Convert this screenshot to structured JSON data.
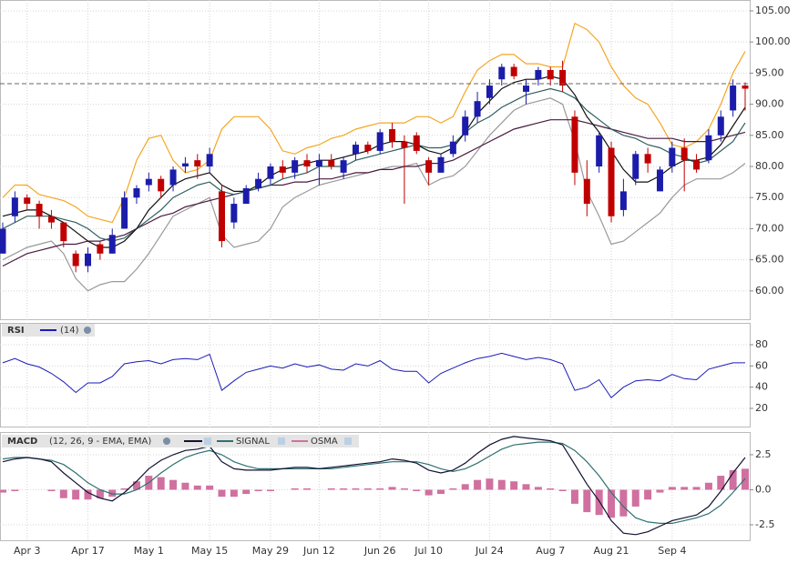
{
  "chart_data": [
    {
      "type": "candlestick",
      "categories": [
        null,
        null,
        "Apr 3",
        null,
        null,
        null,
        null,
        "Apr 17",
        null,
        null,
        null,
        null,
        "May 1",
        null,
        null,
        null,
        null,
        "May 15",
        null,
        null,
        null,
        null,
        "May 29",
        null,
        null,
        null,
        "Jun 12",
        null,
        null,
        null,
        null,
        "Jun 26",
        null,
        null,
        null,
        "Jul 10",
        null,
        null,
        null,
        null,
        "Jul 24",
        null,
        null,
        null,
        null,
        "Aug 7",
        null,
        null,
        null,
        null,
        "Aug 21",
        null,
        null,
        null,
        null,
        "Sep 4",
        null,
        null,
        null,
        null,
        null,
        null
      ],
      "open": [
        66,
        72,
        75,
        74,
        72,
        71,
        66,
        64,
        67.5,
        66,
        70,
        75,
        77,
        78,
        77,
        80,
        81,
        80,
        76,
        71,
        74,
        76.5,
        78,
        80,
        79,
        81,
        80,
        81,
        79,
        82,
        83.5,
        82.5,
        86,
        84,
        85,
        81,
        79,
        82,
        85,
        88,
        91,
        94,
        96,
        92,
        94,
        95.5,
        95.5,
        88,
        78,
        80,
        83,
        73,
        78,
        82,
        76,
        80,
        83,
        81,
        81,
        85,
        89,
        93
      ],
      "high": [
        71,
        76,
        75.5,
        74.5,
        73,
        71,
        66.5,
        67,
        68,
        70,
        76,
        77,
        79,
        78.5,
        80,
        81.5,
        82,
        83,
        77,
        75,
        77,
        79,
        80.5,
        81,
        81.5,
        82,
        82,
        82,
        81.5,
        84,
        84,
        86,
        87,
        85,
        85.5,
        81.5,
        82,
        85,
        89,
        92,
        94,
        96.5,
        96.5,
        94,
        96,
        96,
        97,
        89,
        81,
        85.5,
        84,
        78,
        82.5,
        83,
        80,
        84,
        84.5,
        82,
        86,
        89,
        94,
        93.5
      ],
      "low": [
        66,
        71,
        73,
        70,
        70,
        67,
        63,
        63,
        65,
        66,
        70,
        74,
        76,
        75,
        76,
        79,
        78,
        79,
        67,
        70,
        74,
        76,
        77,
        78,
        78,
        79,
        77,
        79.5,
        78,
        81,
        82,
        82,
        83,
        74,
        82,
        77,
        79,
        81.5,
        84,
        87,
        90,
        93,
        94,
        90,
        93,
        93,
        92,
        77,
        72,
        79,
        71,
        72,
        77,
        79,
        76,
        79,
        76,
        79,
        80.5,
        84,
        88,
        89
      ],
      "close": [
        70,
        75,
        74,
        72,
        71,
        68,
        64,
        66,
        66,
        69,
        75,
        76.5,
        78,
        76,
        79.5,
        80.5,
        80,
        82,
        68,
        74,
        76.5,
        78,
        80,
        79,
        81,
        80,
        81,
        80,
        81,
        83.5,
        82.5,
        85.5,
        84,
        83,
        82.5,
        79,
        81.5,
        84,
        88,
        90.5,
        93,
        96,
        94.5,
        93,
        95.5,
        94,
        93,
        79,
        74,
        85,
        72,
        76,
        82,
        80.5,
        79.5,
        83,
        81,
        79.5,
        85,
        88,
        93,
        92.5
      ],
      "up_color": "#1c1caa",
      "down_color": "#c00000",
      "series": [
        {
          "color": "#f5a623",
          "values": [
            75,
            77,
            77,
            75.5,
            75,
            74.5,
            73.5,
            72,
            71.5,
            71,
            75,
            81,
            84.5,
            85,
            81,
            79,
            79.5,
            81,
            86,
            88,
            88,
            88,
            86,
            82.5,
            82,
            83,
            83.5,
            84.5,
            85,
            86,
            86.5,
            87,
            87,
            87,
            88,
            88,
            87,
            88,
            92,
            95.5,
            97,
            98,
            98,
            96.5,
            96.5,
            96,
            96,
            103,
            102,
            100,
            96,
            93,
            91,
            90,
            87,
            83.5,
            83,
            84,
            86,
            90,
            95,
            98.5
          ]
        },
        {
          "color": "#999999",
          "values": [
            65,
            66,
            67,
            67.5,
            68,
            66,
            62,
            60,
            61,
            61.5,
            61.5,
            63.5,
            66,
            69,
            72,
            73,
            74,
            75,
            69,
            67,
            67.5,
            68,
            70,
            73.5,
            75,
            76,
            77,
            77.5,
            78,
            78.5,
            79,
            79.5,
            80,
            80,
            80.5,
            77,
            78,
            78.5,
            80,
            82.5,
            85,
            87,
            89,
            90,
            90.5,
            91,
            90,
            84,
            76,
            72,
            67.5,
            68,
            69.5,
            71,
            72.5,
            75,
            77,
            78,
            78,
            78,
            79,
            80.5
          ]
        },
        {
          "color": "#4a1a40",
          "values": [
            64,
            65,
            66,
            66.5,
            67,
            67.5,
            67.5,
            68,
            68,
            68.5,
            69,
            70,
            71,
            72,
            72.5,
            73.5,
            74,
            74.5,
            75,
            75.5,
            76,
            76.5,
            77,
            77,
            77.5,
            77.5,
            78,
            78,
            78.5,
            79,
            79,
            79.5,
            79.5,
            80,
            80,
            80.5,
            80.5,
            81,
            82,
            83,
            84,
            85,
            86,
            86.5,
            87,
            87.5,
            87.5,
            87.5,
            87,
            86.5,
            86,
            85.5,
            85,
            84.5,
            84.5,
            84.5,
            84,
            84,
            84,
            84.5,
            85,
            85.5
          ]
        },
        {
          "color": "#2f5f5f",
          "values": [
            70,
            71,
            72,
            72,
            72,
            71.5,
            71,
            70,
            68.5,
            68,
            68.5,
            70,
            71.5,
            73,
            75,
            76,
            77,
            77.5,
            76,
            75.5,
            76,
            76.5,
            77,
            78,
            78.5,
            79,
            80,
            80,
            80,
            81,
            81.5,
            82,
            82.5,
            83,
            83.5,
            83,
            83,
            83.5,
            85.5,
            87,
            88,
            89.5,
            90.5,
            91.5,
            92,
            92.5,
            92,
            91,
            89,
            87.5,
            86,
            85,
            84.5,
            83.5,
            83,
            82,
            81.5,
            80.5,
            81,
            82.5,
            84,
            87
          ]
        },
        {
          "color": "#111111",
          "values": [
            72,
            72.5,
            73,
            73,
            72,
            71,
            69.5,
            68,
            67,
            67,
            68,
            70,
            73,
            75,
            77,
            78,
            78.5,
            79,
            77,
            76,
            76,
            77,
            78.5,
            79.5,
            80,
            80.5,
            81,
            81,
            81.5,
            82,
            82.5,
            83.5,
            84,
            84,
            83.5,
            82.5,
            82,
            83,
            85.5,
            88.5,
            90.5,
            92.5,
            93.5,
            94,
            94,
            94.5,
            94,
            91.5,
            88,
            85.5,
            82.5,
            79.5,
            77.5,
            77.5,
            78.5,
            80,
            81,
            81,
            81.5,
            83.5,
            86.5,
            89.5
          ]
        }
      ],
      "price_line": 93.3,
      "ylim": [
        55.3,
        106.75
      ],
      "yticks": [
        {
          "value": 60,
          "label": "60.00"
        },
        {
          "value": 65,
          "label": "65.00"
        },
        {
          "value": 70,
          "label": "70.00"
        },
        {
          "value": 75,
          "label": "75.00"
        },
        {
          "value": 80,
          "label": "80.00"
        },
        {
          "value": 85,
          "label": "85.00"
        },
        {
          "value": 90,
          "label": "90.00"
        },
        {
          "value": 95,
          "label": "95.00"
        },
        {
          "value": 100,
          "label": "100.00"
        },
        {
          "value": 105,
          "label": "105.00"
        }
      ],
      "grid": true
    },
    {
      "type": "line",
      "title": "RSI",
      "series": [
        {
          "name": "(14)",
          "color": "#1a1ab8",
          "values": [
            63,
            67,
            62,
            59,
            53,
            45,
            35,
            44,
            44,
            50,
            62,
            64,
            65,
            62,
            66,
            67,
            66,
            71,
            37,
            46,
            54,
            57,
            60,
            58,
            62,
            59,
            61,
            57,
            56,
            62,
            60,
            65,
            57,
            55,
            55,
            44,
            53,
            58,
            63,
            67,
            69,
            72,
            69,
            66,
            68,
            66,
            62,
            37,
            40,
            47,
            30,
            40,
            46,
            47,
            46,
            52,
            48,
            47,
            57,
            60,
            63,
            63
          ]
        }
      ],
      "ylim": [
        2,
        100.6
      ],
      "yticks": [
        20,
        40,
        60,
        80
      ],
      "grid": true
    },
    {
      "type": "macd",
      "title": "MACD",
      "subtitle": "(12, 26, 9 - EMA, EMA)",
      "series": [
        {
          "type": "bar",
          "name": "OSMA",
          "color": "#d070a0",
          "values": [
            -0.2,
            -0.1,
            0,
            0,
            -0.1,
            -0.6,
            -0.7,
            -0.7,
            -0.6,
            -0.5,
            0.1,
            0.6,
            1.0,
            0.9,
            0.7,
            0.5,
            0.3,
            0.3,
            -0.5,
            -0.5,
            -0.3,
            -0.1,
            -0.1,
            0,
            0.1,
            0.1,
            0,
            0.1,
            0.1,
            0.1,
            0.1,
            0.1,
            0.2,
            0.1,
            -0.1,
            -0.4,
            -0.3,
            0.1,
            0.4,
            0.7,
            0.8,
            0.7,
            0.6,
            0.4,
            0.2,
            0.1,
            -0.1,
            -1.0,
            -1.6,
            -1.8,
            -2.0,
            -1.9,
            -1.2,
            -0.7,
            -0.2,
            0.2,
            0.2,
            0.2,
            0.5,
            1.0,
            1.4,
            1.5
          ]
        },
        {
          "type": "line",
          "name": "SIGNAL",
          "color": "#2f7070",
          "values": [
            2.2,
            2.3,
            2.3,
            2.2,
            2.1,
            1.8,
            1.2,
            0.5,
            0,
            -0.3,
            -0.3,
            0,
            0.5,
            1.2,
            1.8,
            2.3,
            2.6,
            2.8,
            2.5,
            2.0,
            1.7,
            1.5,
            1.5,
            1.5,
            1.5,
            1.5,
            1.5,
            1.5,
            1.6,
            1.7,
            1.8,
            1.9,
            2.0,
            2.0,
            2.0,
            1.8,
            1.5,
            1.3,
            1.5,
            1.9,
            2.4,
            2.9,
            3.2,
            3.3,
            3.4,
            3.4,
            3.3,
            2.8,
            2.0,
            1.0,
            -0.2,
            -1.2,
            -2.0,
            -2.3,
            -2.4,
            -2.4,
            -2.2,
            -2.0,
            -1.7,
            -1.1,
            -0.2,
            0.8
          ]
        },
        {
          "type": "line",
          "color": "#111133",
          "values": [
            2.0,
            2.2,
            2.3,
            2.2,
            2.0,
            1.2,
            0.5,
            -0.2,
            -0.6,
            -0.8,
            -0.2,
            0.6,
            1.5,
            2.1,
            2.5,
            2.8,
            2.9,
            3.1,
            2.0,
            1.5,
            1.4,
            1.4,
            1.4,
            1.5,
            1.6,
            1.6,
            1.5,
            1.6,
            1.7,
            1.8,
            1.9,
            2.0,
            2.2,
            2.1,
            1.9,
            1.4,
            1.2,
            1.4,
            1.9,
            2.6,
            3.2,
            3.6,
            3.8,
            3.7,
            3.6,
            3.5,
            3.2,
            1.8,
            0.4,
            -0.8,
            -2.2,
            -3.1,
            -3.2,
            -3.0,
            -2.6,
            -2.2,
            -2.0,
            -1.8,
            -1.2,
            -0.1,
            1.2,
            2.3
          ]
        }
      ],
      "ylim": [
        -3.67,
        4.12
      ],
      "yticks": [
        2.5,
        {
          "value": 0,
          "label": "0.0"
        },
        -2.5
      ],
      "grid": true
    }
  ]
}
